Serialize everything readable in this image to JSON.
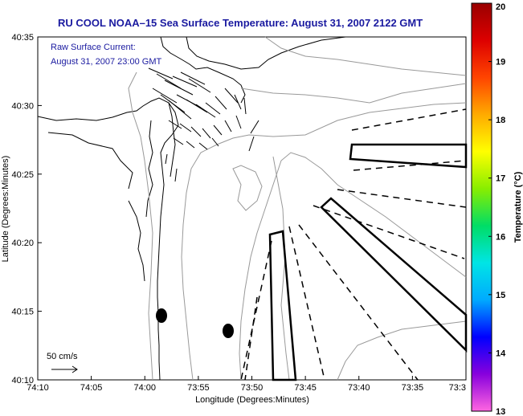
{
  "title": "RU COOL  NOAA–15  Sea Surface Temperature:  August 31, 2007 2122 GMT",
  "current_label": {
    "line1": "Raw Surface Current:",
    "line2": "August 31, 2007 23:00 GMT"
  },
  "scale_label": "50 cm/s",
  "axes": {
    "xlabel": "Longitude (Degrees:Minutes)",
    "ylabel": "Latitude (Degrees:Minutes)",
    "x_ticks": [
      "74:10",
      "74:05",
      "74:00",
      "73:55",
      "73:50",
      "73:45",
      "73:40",
      "73:35",
      "73:3"
    ],
    "y_ticks": [
      "40:35",
      "40:30",
      "40:25",
      "40:20",
      "40:15",
      "40:10"
    ]
  },
  "colorbar": {
    "label": "Temperature (°C)",
    "ticks": [
      "20",
      "19",
      "18",
      "17",
      "16",
      "15",
      "14",
      "13"
    ],
    "min": 13,
    "max": 20,
    "colors": [
      "#ff66e0",
      "#8800dd",
      "#0000ff",
      "#00aaff",
      "#00e5e5",
      "#00dd66",
      "#88ee00",
      "#ffff00",
      "#ffaa00",
      "#ff4400",
      "#dd0000",
      "#990000"
    ]
  },
  "colors": {
    "title": "#1a1aa0",
    "contour": "#999999",
    "land_outline": "#000000"
  }
}
